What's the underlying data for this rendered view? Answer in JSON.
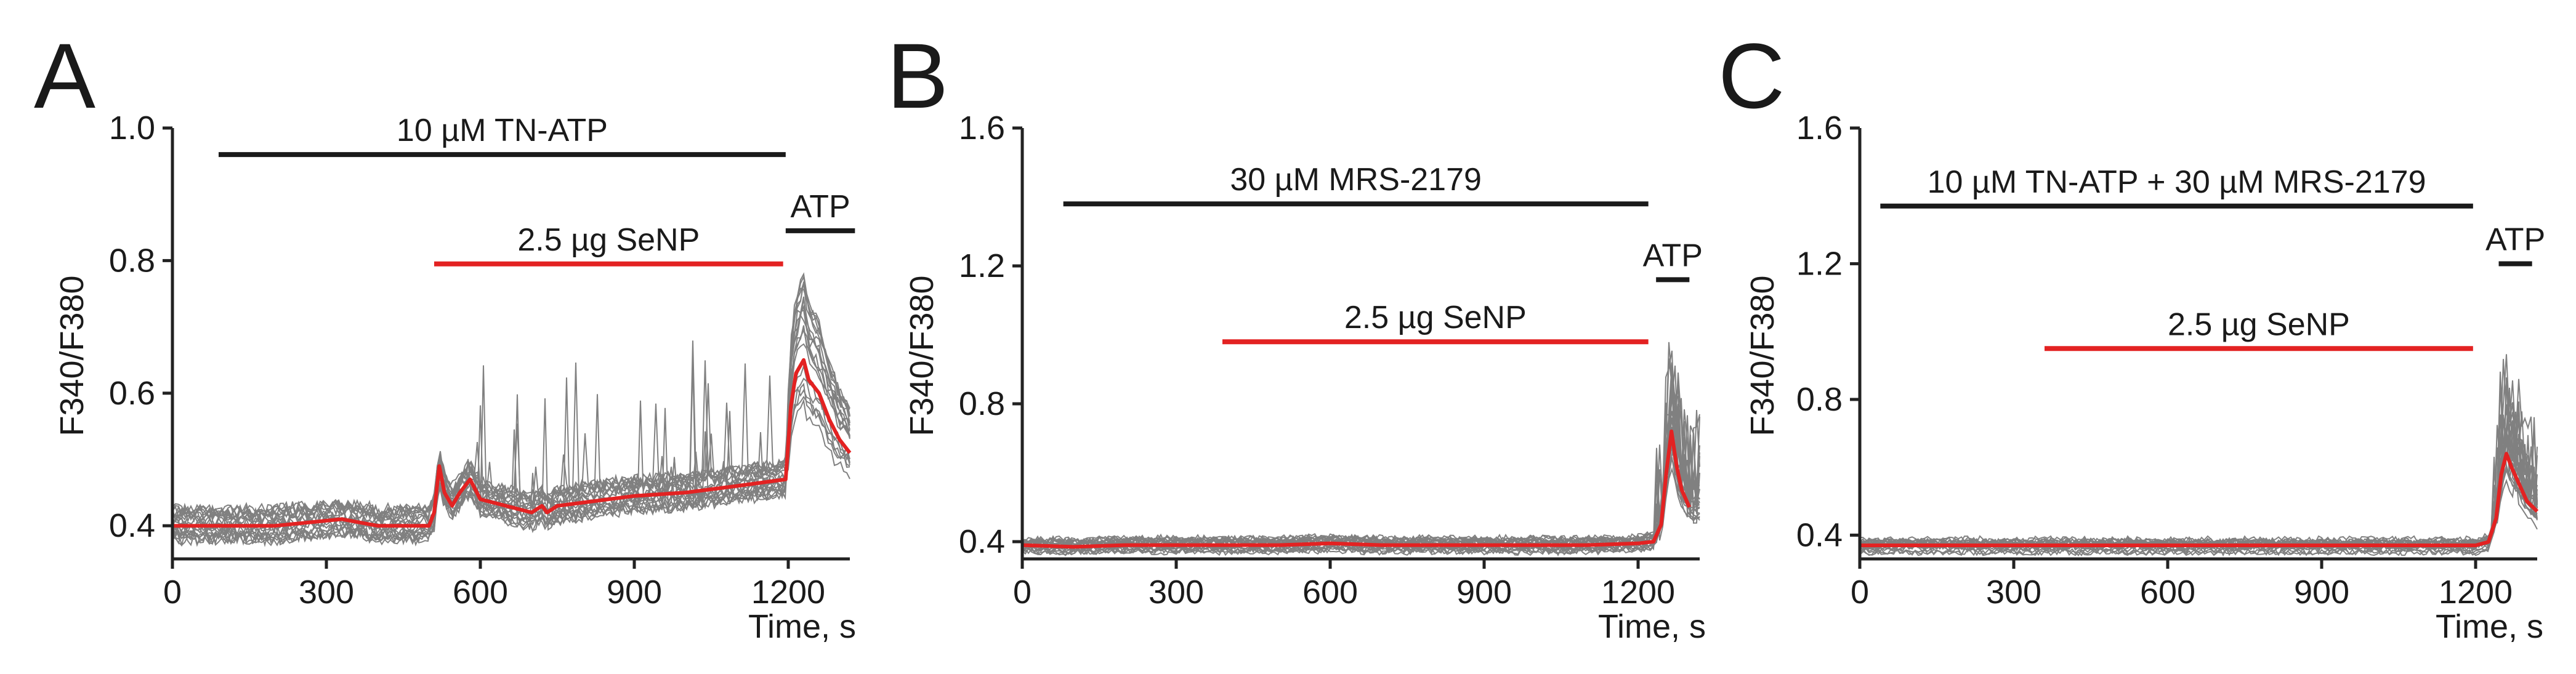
{
  "colors": {
    "trace": "#1a1a1a",
    "mean": "#e32222",
    "axis": "#222222"
  },
  "chart_data": [
    {
      "type": "line",
      "panel": "A",
      "xlabel": "Time, s",
      "ylabel": "F340/F380",
      "xlim": [
        0,
        1320
      ],
      "ylim": [
        0.35,
        1.0
      ],
      "xticks": [
        0,
        300,
        600,
        900,
        1200
      ],
      "yticks": [
        0.4,
        0.6,
        0.8,
        1.0
      ],
      "ytick_labels": [
        "0.4",
        "0.6",
        "0.8",
        "1.0"
      ],
      "grid": false,
      "bars": [
        {
          "label": "10 µM TN-ATP",
          "x0": 90,
          "x1": 1195,
          "y": 0.96,
          "color": "#1a1a1a"
        },
        {
          "label": "2.5 µg SeNP",
          "x0": 510,
          "x1": 1190,
          "y": 0.795,
          "color": "#e32222"
        },
        {
          "label": "ATP",
          "x0": 1195,
          "x1": 1330,
          "y": 0.845,
          "color": "#1a1a1a"
        }
      ],
      "series": [
        {
          "role": "mean",
          "x": [
            0,
            100,
            200,
            330,
            400,
            500,
            510,
            520,
            530,
            545,
            560,
            580,
            600,
            650,
            700,
            720,
            730,
            750,
            800,
            900,
            1000,
            1100,
            1195,
            1205,
            1215,
            1230,
            1240,
            1260,
            1280,
            1300,
            1320
          ],
          "y": [
            0.4,
            0.4,
            0.4,
            0.41,
            0.4,
            0.4,
            0.42,
            0.49,
            0.45,
            0.43,
            0.45,
            0.47,
            0.44,
            0.43,
            0.42,
            0.43,
            0.42,
            0.43,
            0.435,
            0.445,
            0.45,
            0.46,
            0.47,
            0.58,
            0.63,
            0.65,
            0.62,
            0.6,
            0.56,
            0.53,
            0.51
          ]
        }
      ]
    },
    {
      "type": "line",
      "panel": "B",
      "xlabel": "Time, s",
      "ylabel": "F340/F380",
      "xlim": [
        0,
        1320
      ],
      "ylim": [
        0.35,
        1.6
      ],
      "xticks": [
        0,
        300,
        600,
        900,
        1200
      ],
      "yticks": [
        0.4,
        0.8,
        1.2,
        1.6
      ],
      "ytick_labels": [
        "0.4",
        "0.8",
        "1.2",
        "1.6"
      ],
      "grid": false,
      "bars": [
        {
          "label": "30 µM MRS-2179",
          "x0": 80,
          "x1": 1220,
          "y": 1.38,
          "color": "#1a1a1a"
        },
        {
          "label": "2.5 µg SeNP",
          "x0": 390,
          "x1": 1220,
          "y": 0.98,
          "color": "#e32222"
        },
        {
          "label": "ATP",
          "x0": 1235,
          "x1": 1300,
          "y": 1.16,
          "color": "#1a1a1a"
        }
      ],
      "series": [
        {
          "role": "mean",
          "x": [
            0,
            100,
            200,
            300,
            400,
            500,
            600,
            700,
            800,
            900,
            1000,
            1100,
            1200,
            1230,
            1245,
            1255,
            1265,
            1275,
            1285,
            1300
          ],
          "y": [
            0.39,
            0.385,
            0.39,
            0.39,
            0.39,
            0.39,
            0.395,
            0.39,
            0.39,
            0.39,
            0.39,
            0.39,
            0.395,
            0.4,
            0.45,
            0.6,
            0.72,
            0.62,
            0.55,
            0.5
          ]
        }
      ]
    },
    {
      "type": "line",
      "panel": "C",
      "xlabel": "Time, s",
      "ylabel": "F340/F380",
      "xlim": [
        0,
        1320
      ],
      "ylim": [
        0.33,
        1.6
      ],
      "xticks": [
        0,
        300,
        600,
        900,
        1200
      ],
      "yticks": [
        0.4,
        0.8,
        1.2,
        1.6
      ],
      "ytick_labels": [
        "0.4",
        "0.8",
        "1.2",
        "1.6"
      ],
      "grid": false,
      "bars": [
        {
          "label": "10 µM TN-ATP + 30 µM MRS-2179",
          "x0": 40,
          "x1": 1195,
          "y": 1.37,
          "color": "#1a1a1a"
        },
        {
          "label": "2.5 µg SeNP",
          "x0": 360,
          "x1": 1195,
          "y": 0.95,
          "color": "#e32222"
        },
        {
          "label": "ATP",
          "x0": 1245,
          "x1": 1310,
          "y": 1.2,
          "color": "#1a1a1a"
        }
      ],
      "series": [
        {
          "role": "mean",
          "x": [
            0,
            100,
            200,
            300,
            400,
            500,
            600,
            700,
            800,
            900,
            1000,
            1100,
            1200,
            1225,
            1240,
            1250,
            1260,
            1270,
            1285,
            1300,
            1320
          ],
          "y": [
            0.37,
            0.37,
            0.37,
            0.37,
            0.37,
            0.37,
            0.37,
            0.37,
            0.37,
            0.37,
            0.37,
            0.37,
            0.37,
            0.38,
            0.45,
            0.58,
            0.64,
            0.6,
            0.55,
            0.5,
            0.47
          ]
        }
      ]
    }
  ]
}
